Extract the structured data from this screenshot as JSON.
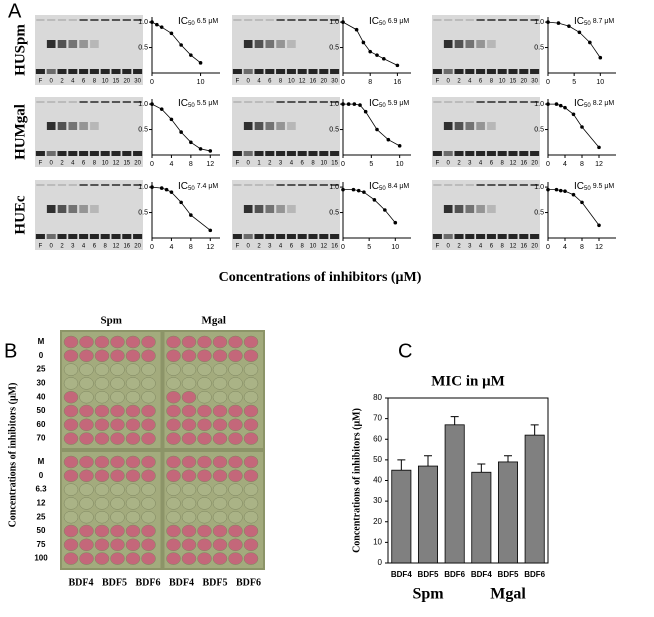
{
  "panel_labels": {
    "a": "A",
    "b": "B",
    "c": "C"
  },
  "panel_a": {
    "row_labels": [
      "HUSpm",
      "HUMgal",
      "HUEc"
    ],
    "x_title": "Concentrations of inhibitors (μM)",
    "gels": [
      {
        "lanes": [
          "F",
          "0",
          "2",
          "4",
          "6",
          "8",
          "10",
          "15",
          "20",
          "30"
        ]
      },
      {
        "lanes": [
          "F",
          "0",
          "4",
          "6",
          "8",
          "10",
          "12",
          "16",
          "20",
          "30"
        ]
      },
      {
        "lanes": [
          "F",
          "0",
          "2",
          "4",
          "6",
          "8",
          "10",
          "15",
          "20",
          "30"
        ]
      },
      {
        "lanes": [
          "F",
          "0",
          "2",
          "4",
          "6",
          "8",
          "10",
          "12",
          "15",
          "20"
        ]
      },
      {
        "lanes": [
          "F",
          "0",
          "1",
          "2",
          "3",
          "4",
          "6",
          "8",
          "10",
          "15"
        ]
      },
      {
        "lanes": [
          "F",
          "0",
          "2",
          "3",
          "4",
          "6",
          "8",
          "12",
          "16",
          "20"
        ]
      },
      {
        "lanes": [
          "F",
          "0",
          "2",
          "3",
          "4",
          "6",
          "8",
          "12",
          "16",
          "20"
        ]
      },
      {
        "lanes": [
          "F",
          "0",
          "2",
          "3",
          "4",
          "6",
          "8",
          "10",
          "12",
          "16"
        ]
      },
      {
        "lanes": [
          "F",
          "0",
          "2",
          "3",
          "4",
          "6",
          "8",
          "12",
          "16",
          "20"
        ]
      }
    ]
  },
  "panel_b": {
    "column_headers": [
      "Spm",
      "Mgal"
    ],
    "y_title": "Concentrations of inhibitors (μM)",
    "row_labels": [
      "M",
      "0",
      "25",
      "30",
      "40",
      "50",
      "60",
      "70",
      "M",
      "0",
      "6.3",
      "12",
      "25",
      "50",
      "75",
      "100"
    ],
    "column_labels": [
      "BDF4",
      "BDF5",
      "BDF6",
      "BDF4",
      "BDF5",
      "BDF6"
    ]
  },
  "chart_data": [
    {
      "type": "line",
      "annotation": [
        "IC",
        "50",
        "6.5 μM"
      ],
      "x": [
        0,
        1,
        2,
        4,
        6,
        8,
        10
      ],
      "values": [
        1,
        0.95,
        0.9,
        0.78,
        0.55,
        0.35,
        0.2
      ],
      "xlim": [
        0,
        14
      ],
      "xticks": [
        0,
        10
      ],
      "ylim": [
        0,
        1.1
      ],
      "yticks": [
        0.5,
        {
          "value": 1,
          "label": "1.0"
        }
      ]
    },
    {
      "type": "line",
      "annotation": [
        "IC",
        "50",
        "6.9 μM"
      ],
      "x": [
        0,
        4,
        6,
        8,
        10,
        12,
        16
      ],
      "values": [
        1,
        0.85,
        0.6,
        0.42,
        0.35,
        0.28,
        0.15
      ],
      "xlim": [
        0,
        20
      ],
      "xticks": [
        0,
        8,
        16
      ],
      "ylim": [
        0,
        1.1
      ],
      "yticks": [
        0.5,
        {
          "value": 1,
          "label": "1.0"
        }
      ]
    },
    {
      "type": "line",
      "annotation": [
        "IC",
        "50",
        "8.7 μM"
      ],
      "x": [
        0,
        2,
        4,
        6,
        8,
        10
      ],
      "values": [
        1,
        0.98,
        0.92,
        0.8,
        0.6,
        0.3
      ],
      "xlim": [
        0,
        13
      ],
      "xticks": [
        0,
        5,
        10
      ],
      "ylim": [
        0,
        1.1
      ],
      "yticks": [
        0.5,
        {
          "value": 1,
          "label": "1.0"
        }
      ]
    },
    {
      "type": "line",
      "annotation": [
        "IC",
        "50",
        "5.5 μM"
      ],
      "x": [
        0,
        2,
        4,
        6,
        8,
        10,
        12
      ],
      "values": [
        1,
        0.9,
        0.7,
        0.45,
        0.25,
        0.12,
        0.08
      ],
      "xlim": [
        0,
        14
      ],
      "xticks": [
        0,
        4,
        8,
        12
      ],
      "ylim": [
        0,
        1.1
      ],
      "yticks": [
        0.5,
        {
          "value": 1,
          "label": "1.0"
        }
      ]
    },
    {
      "type": "line",
      "annotation": [
        "IC",
        "50",
        "5.9 μM"
      ],
      "x": [
        0,
        1,
        2,
        3,
        4,
        6,
        8,
        10
      ],
      "values": [
        1,
        1,
        1,
        0.98,
        0.85,
        0.5,
        0.3,
        0.18
      ],
      "xlim": [
        0,
        12
      ],
      "xticks": [
        0,
        5,
        10
      ],
      "ylim": [
        0,
        1.1
      ],
      "yticks": [
        0.5,
        {
          "value": 1,
          "label": "1.0"
        }
      ]
    },
    {
      "type": "line",
      "annotation": [
        "IC",
        "50",
        "8.2 μM"
      ],
      "x": [
        0,
        2,
        3,
        4,
        6,
        8,
        12
      ],
      "values": [
        1,
        1,
        0.97,
        0.93,
        0.8,
        0.55,
        0.15
      ],
      "xlim": [
        0,
        16
      ],
      "xticks": [
        0,
        4,
        8,
        12
      ],
      "ylim": [
        0,
        1.1
      ],
      "yticks": [
        0.5,
        {
          "value": 1,
          "label": "1.0"
        }
      ]
    },
    {
      "type": "line",
      "annotation": [
        "IC",
        "50",
        "7.4 μM"
      ],
      "x": [
        0,
        2,
        3,
        4,
        6,
        8,
        12
      ],
      "values": [
        1,
        0.98,
        0.95,
        0.9,
        0.7,
        0.45,
        0.15
      ],
      "xlim": [
        0,
        14
      ],
      "xticks": [
        0,
        4,
        8,
        12
      ],
      "ylim": [
        0,
        1.1
      ],
      "yticks": [
        0.5,
        {
          "value": 1,
          "label": "1.0"
        }
      ]
    },
    {
      "type": "line",
      "annotation": [
        "IC",
        "50",
        "8.4 μM"
      ],
      "x": [
        0,
        2,
        3,
        4,
        6,
        8,
        10
      ],
      "values": [
        0.95,
        0.95,
        0.93,
        0.9,
        0.75,
        0.55,
        0.3
      ],
      "xlim": [
        0,
        13
      ],
      "xticks": [
        0,
        5,
        10
      ],
      "ylim": [
        0,
        1.1
      ],
      "yticks": [
        0.5,
        {
          "value": 1,
          "label": "1.0"
        }
      ]
    },
    {
      "type": "line",
      "annotation": [
        "IC",
        "50",
        "9.5 μM"
      ],
      "x": [
        0,
        2,
        3,
        4,
        6,
        8,
        12
      ],
      "values": [
        0.95,
        0.95,
        0.93,
        0.92,
        0.85,
        0.7,
        0.25
      ],
      "xlim": [
        0,
        16
      ],
      "xticks": [
        0,
        4,
        8,
        12
      ],
      "ylim": [
        0,
        1.1
      ],
      "yticks": [
        0.5,
        {
          "value": 1,
          "label": "1.0"
        }
      ]
    },
    {
      "type": "bar",
      "title": "MIC in μM",
      "y_label": "Concentrations of inhibitors (μM)",
      "group_labels": [
        "Spm",
        "Mgal"
      ],
      "categories": [
        "BDF4",
        "BDF5",
        "BDF6",
        "BDF4",
        "BDF5",
        "BDF6"
      ],
      "values": [
        45,
        47,
        67,
        44,
        49,
        62
      ],
      "errors": [
        5,
        5,
        4,
        4,
        3,
        5
      ],
      "color": "#808080",
      "ylim": [
        0,
        80
      ],
      "yticks": [
        0,
        10,
        20,
        30,
        40,
        50,
        60,
        70,
        80
      ]
    }
  ]
}
